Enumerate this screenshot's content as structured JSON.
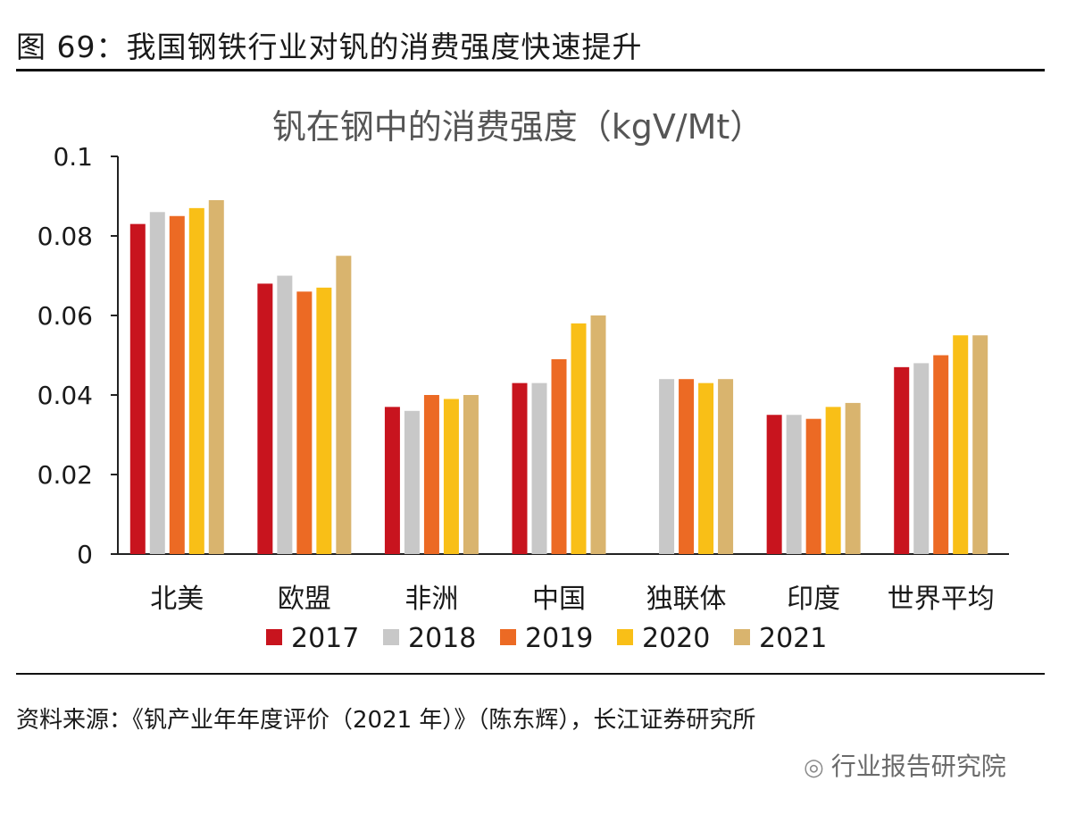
{
  "figure": {
    "title": "图 69：我国钢铁行业对钒的消费强度快速提升",
    "source": "资料来源：《钒产业年年度评价（2021 年）》（陈东辉），长江证券研究所",
    "watermark": "行业报告研究院"
  },
  "chart_data": {
    "type": "bar",
    "title": "钒在钢中的消费强度（kgV/Mt）",
    "categories": [
      "北美",
      "欧盟",
      "非洲",
      "中国",
      "独联体",
      "印度",
      "世界平均"
    ],
    "series": [
      {
        "name": "2017",
        "color": "#c8141e",
        "values": [
          0.083,
          0.068,
          0.037,
          0.043,
          null,
          0.035,
          0.047
        ]
      },
      {
        "name": "2018",
        "color": "#c8c8c8",
        "values": [
          0.086,
          0.07,
          0.036,
          0.043,
          0.044,
          0.035,
          0.048
        ]
      },
      {
        "name": "2019",
        "color": "#ec6a24",
        "values": [
          0.085,
          0.066,
          0.04,
          0.049,
          0.044,
          0.034,
          0.05
        ]
      },
      {
        "name": "2020",
        "color": "#f9bf17",
        "values": [
          0.087,
          0.067,
          0.039,
          0.058,
          0.043,
          0.037,
          0.055
        ]
      },
      {
        "name": "2021",
        "color": "#d9b46e",
        "values": [
          0.089,
          0.075,
          0.04,
          0.06,
          0.044,
          0.038,
          0.055
        ]
      }
    ],
    "y_ticks": [
      "0",
      "0.02",
      "0.04",
      "0.06",
      "0.08",
      "0.1"
    ],
    "ylim": [
      0,
      0.1
    ],
    "legend_position": "bottom",
    "grid": false
  }
}
